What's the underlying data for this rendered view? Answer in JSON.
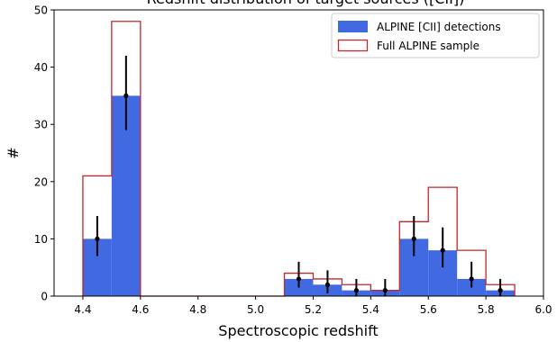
{
  "chart_data": {
    "type": "bar",
    "title": "Redshift distribution of target sources ([CII])",
    "xlabel": "Spectroscopic redshift",
    "ylabel": "#",
    "xlim": [
      4.3,
      6.0
    ],
    "ylim": [
      0,
      50
    ],
    "bin_edges": [
      4.4,
      4.5,
      4.6,
      4.7,
      4.8,
      4.9,
      5.0,
      5.1,
      5.2,
      5.3,
      5.4,
      5.5,
      5.6,
      5.7,
      5.8,
      5.9
    ],
    "x_ticks": [
      "4.4",
      "4.6",
      "4.8",
      "5.0",
      "5.2",
      "5.4",
      "5.6",
      "5.8",
      "6.0"
    ],
    "y_ticks": [
      "0",
      "10",
      "20",
      "30",
      "40",
      "50"
    ],
    "legend_position": "upper right",
    "grid": false,
    "series": [
      {
        "name": "ALPINE [CII] detections",
        "style": "filled",
        "color": "#4169e1",
        "values": [
          10,
          35,
          0,
          0,
          0,
          0,
          0,
          3,
          2,
          1,
          1,
          10,
          8,
          3,
          1
        ]
      },
      {
        "name": "Full ALPINE sample",
        "style": "step",
        "color": "#c0282d",
        "values": [
          21,
          48,
          0,
          0,
          0,
          0,
          0,
          4,
          3,
          2,
          1,
          13,
          19,
          8,
          2
        ]
      }
    ],
    "error_bars": {
      "color": "#000000",
      "x": [
        4.45,
        4.55,
        5.15,
        5.25,
        5.35,
        5.45,
        5.55,
        5.65,
        5.75,
        5.85
      ],
      "y": [
        10,
        35,
        3,
        2,
        1,
        1,
        10,
        8,
        3,
        1
      ],
      "low": [
        7,
        29,
        1.5,
        0.5,
        0,
        0,
        7,
        5,
        1.5,
        0
      ],
      "high": [
        14,
        42,
        6,
        4.5,
        3,
        3,
        14,
        12,
        6,
        3
      ]
    }
  }
}
